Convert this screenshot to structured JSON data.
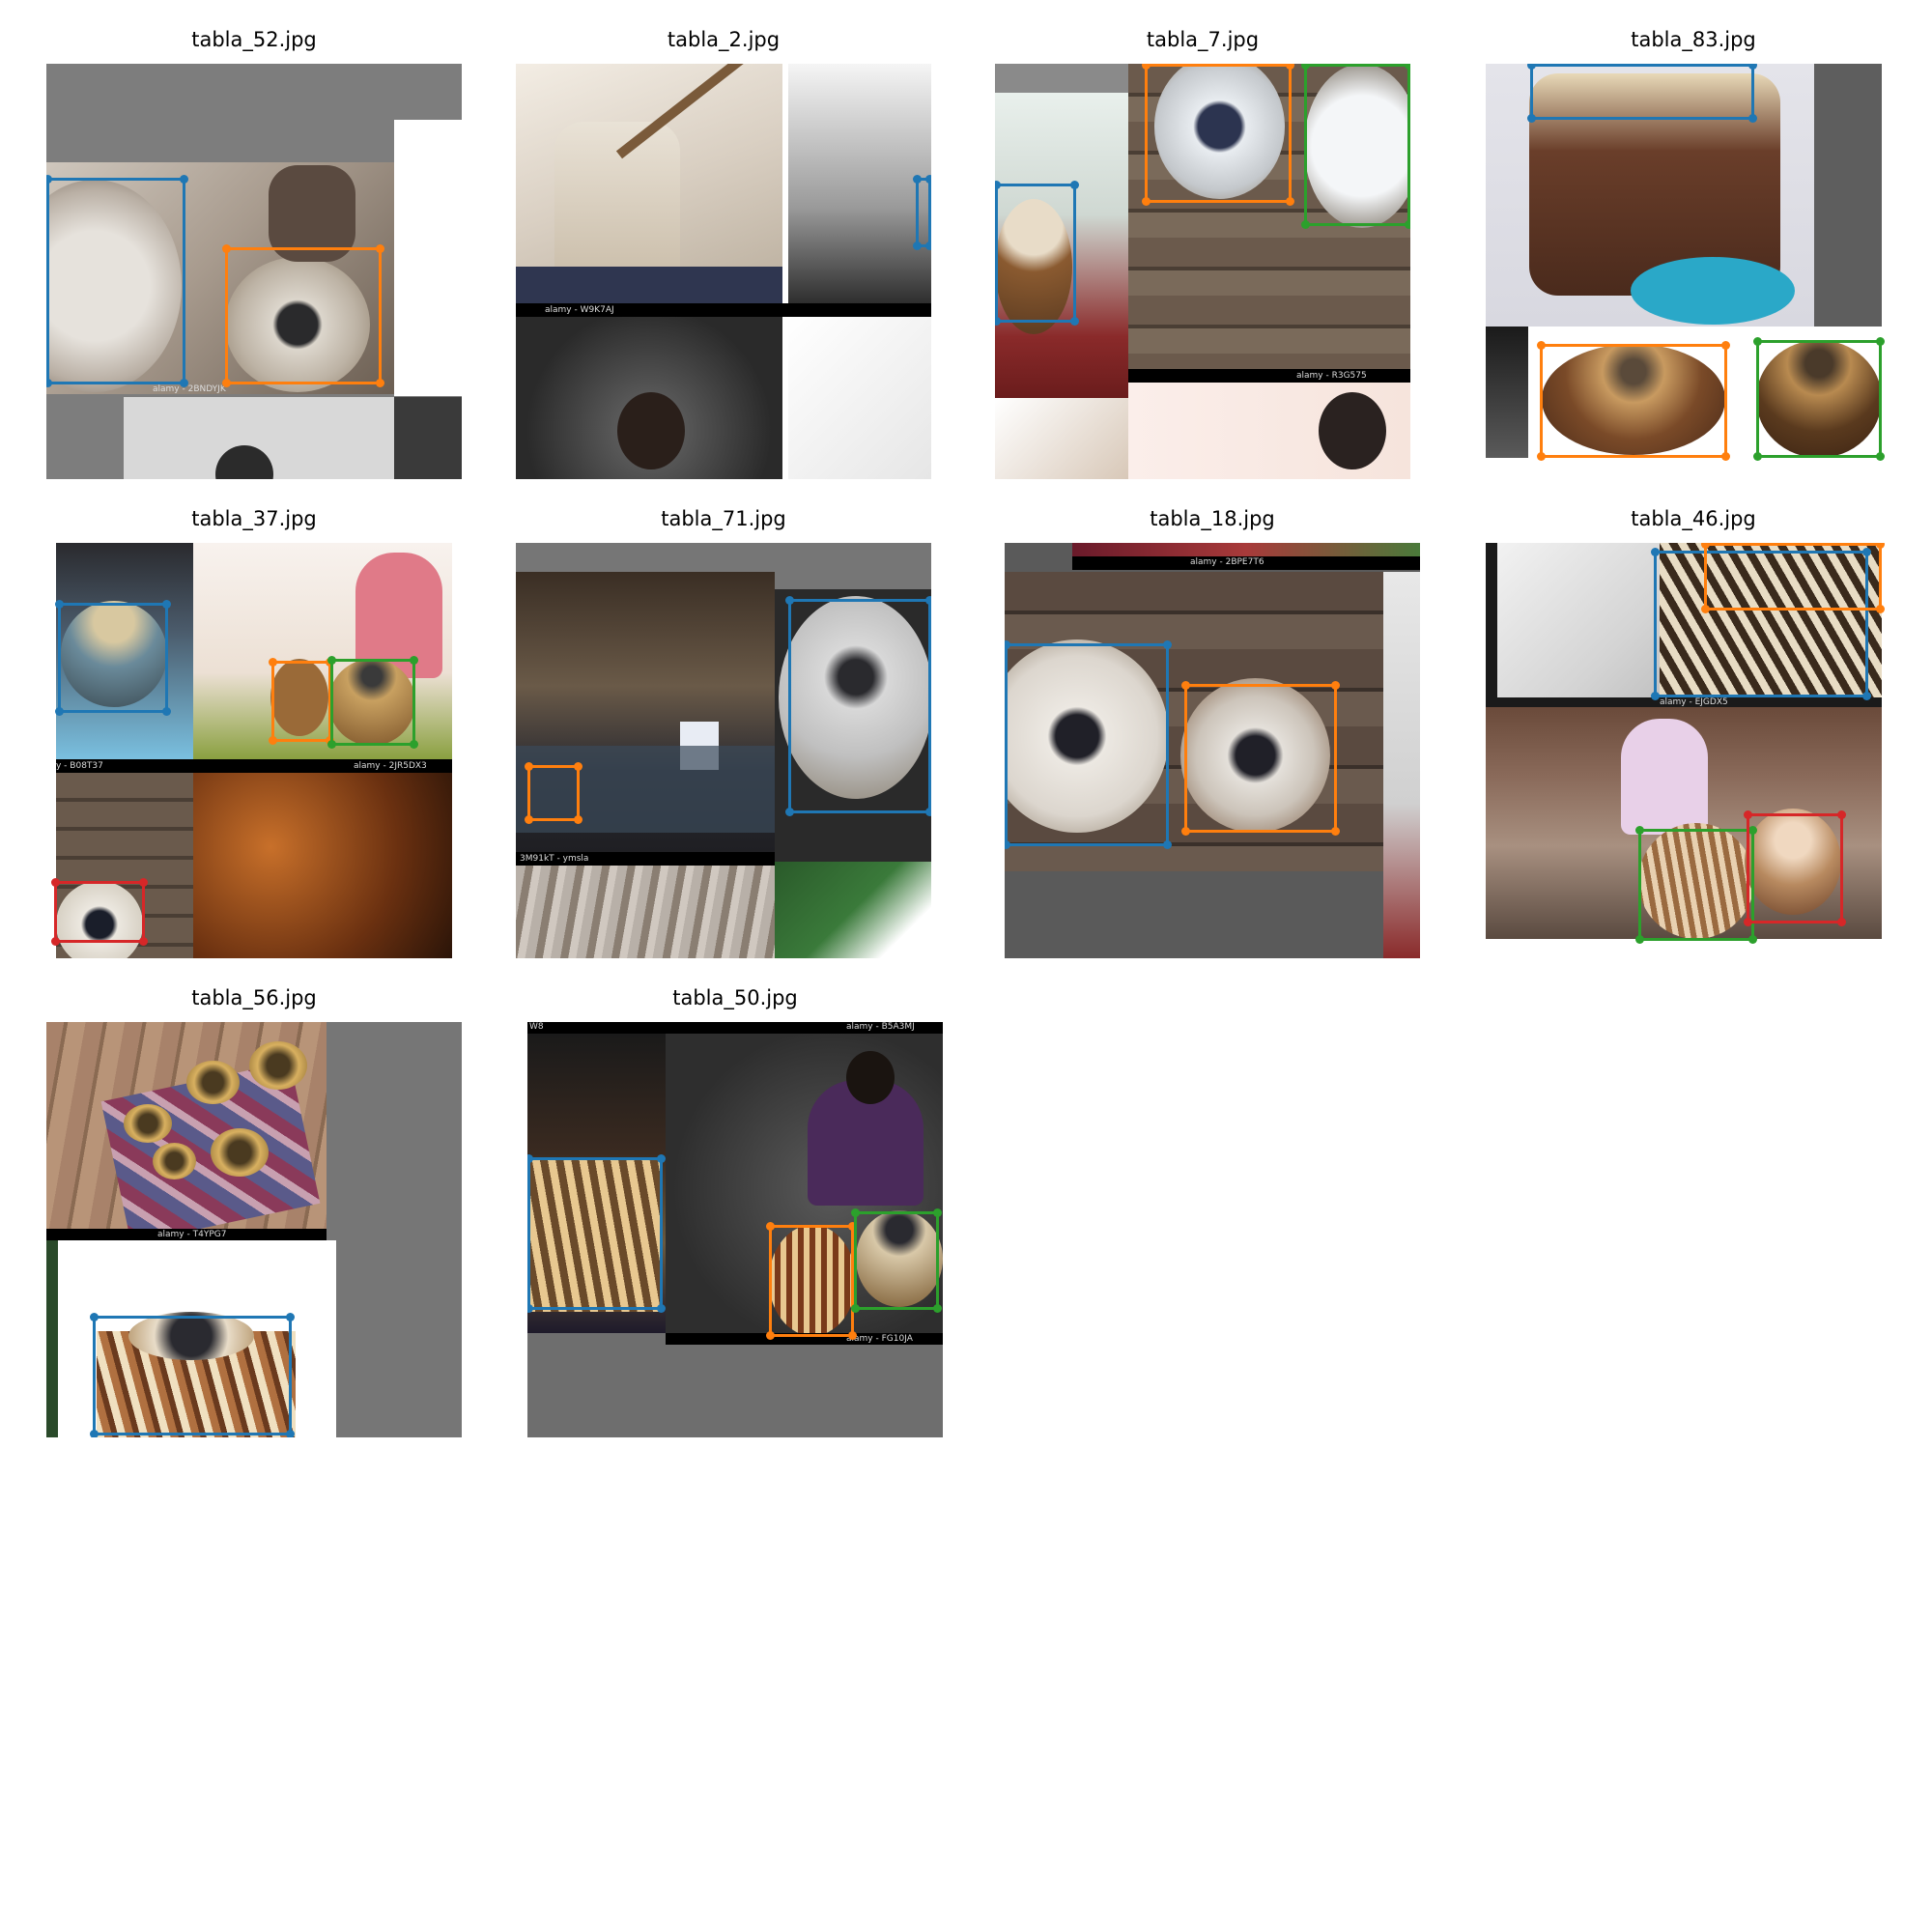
{
  "tiles": [
    {
      "title": "tabla_52.jpg",
      "watermarks": [
        "alamy - 2BNDYJK"
      ]
    },
    {
      "title": "tabla_2.jpg",
      "watermarks": [
        "alamy - W9K7AJ"
      ]
    },
    {
      "title": "tabla_7.jpg",
      "watermarks": [
        "alamy - R3G575"
      ]
    },
    {
      "title": "tabla_83.jpg",
      "watermarks": []
    },
    {
      "title": "tabla_37.jpg",
      "watermarks": [
        "y - B08T37",
        "alamy - 2JR5DX3"
      ]
    },
    {
      "title": "tabla_71.jpg",
      "watermarks": [
        "3M91kT - ymsla"
      ]
    },
    {
      "title": "tabla_18.jpg",
      "watermarks": [
        "alamy - 2BPE7T6"
      ]
    },
    {
      "title": "tabla_46.jpg",
      "watermarks": [
        "alamy - EJGDX5"
      ]
    },
    {
      "title": "tabla_56.jpg",
      "watermarks": [
        "alamy - T4YPG7"
      ]
    },
    {
      "title": "tabla_50.jpg",
      "watermarks": [
        "W8",
        "alamy - B5A3MJ",
        "alamy - FG10JA"
      ]
    }
  ],
  "box_colors": {
    "blue": "#1f77b4",
    "orange": "#ff7f0e",
    "green": "#2ca02c",
    "red": "#d62728"
  }
}
